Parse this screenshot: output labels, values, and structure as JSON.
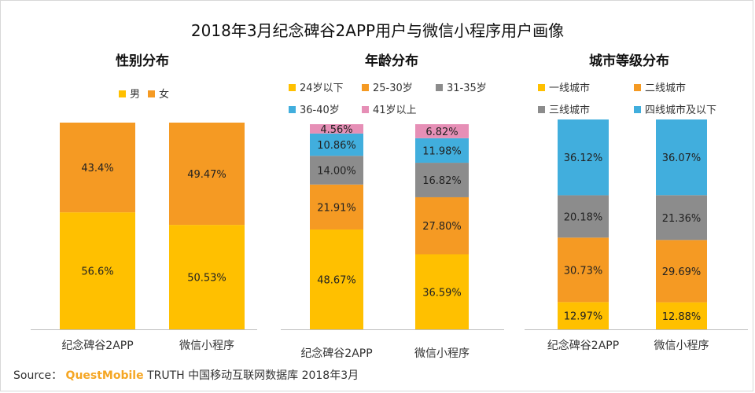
{
  "title": "2018年3月纪念碑谷2APP用户与微信小程序用户画像",
  "source": {
    "label": "Source：",
    "brand": "QuestMobile",
    "rest": "TRUTH 中国移动互联网数据库 2018年3月"
  },
  "colors": {
    "yellow": "#ffc000",
    "orange": "#f59a23",
    "gray": "#8c8c8c",
    "blue": "#41aedd",
    "pink": "#e68fb6",
    "axis": "#bfbfbf"
  },
  "chart_data": [
    {
      "type": "bar",
      "stacked": true,
      "title": "性别分布",
      "categories": [
        "纪念碑谷2APP",
        "微信小程序"
      ],
      "legend_position": "top",
      "series": [
        {
          "name": "男",
          "color": "#ffc000",
          "values": [
            56.6,
            50.53
          ],
          "labels": [
            "56.6%",
            "50.53%"
          ]
        },
        {
          "name": "女",
          "color": "#f59a23",
          "values": [
            43.4,
            49.47
          ],
          "labels": [
            "43.4%",
            "49.47%"
          ]
        }
      ]
    },
    {
      "type": "bar",
      "stacked": true,
      "title": "年龄分布",
      "categories": [
        "纪念碑谷2APP",
        "微信小程序"
      ],
      "legend_position": "top",
      "series": [
        {
          "name": "24岁以下",
          "color": "#ffc000",
          "values": [
            48.67,
            36.59
          ],
          "labels": [
            "48.67%",
            "36.59%"
          ]
        },
        {
          "name": "25-30岁",
          "color": "#f59a23",
          "values": [
            21.91,
            27.8
          ],
          "labels": [
            "21.91%",
            "27.80%"
          ]
        },
        {
          "name": "31-35岁",
          "color": "#8c8c8c",
          "values": [
            14.0,
            16.82
          ],
          "labels": [
            "14.00%",
            "16.82%"
          ]
        },
        {
          "name": "36-40岁",
          "color": "#41aedd",
          "values": [
            10.86,
            11.98
          ],
          "labels": [
            "10.86%",
            "11.98%"
          ]
        },
        {
          "name": "41岁以上",
          "color": "#e68fb6",
          "values": [
            4.56,
            6.82
          ],
          "labels": [
            "4.56%",
            "6.82%"
          ]
        }
      ]
    },
    {
      "type": "bar",
      "stacked": true,
      "title": "城市等级分布",
      "categories": [
        "纪念碑谷2APP",
        "微信小程序"
      ],
      "legend_position": "top",
      "series": [
        {
          "name": "一线城市",
          "color": "#ffc000",
          "values": [
            12.97,
            12.88
          ],
          "labels": [
            "12.97%",
            "12.88%"
          ]
        },
        {
          "name": "二线城市",
          "color": "#f59a23",
          "values": [
            30.73,
            29.69
          ],
          "labels": [
            "30.73%",
            "29.69%"
          ]
        },
        {
          "name": "三线城市",
          "color": "#8c8c8c",
          "values": [
            20.18,
            21.36
          ],
          "labels": [
            "20.18%",
            "21.36%"
          ]
        },
        {
          "name": "四线城市及以下",
          "color": "#41aedd",
          "values": [
            36.12,
            36.07
          ],
          "labels": [
            "36.12%",
            "36.07%"
          ]
        }
      ]
    }
  ]
}
